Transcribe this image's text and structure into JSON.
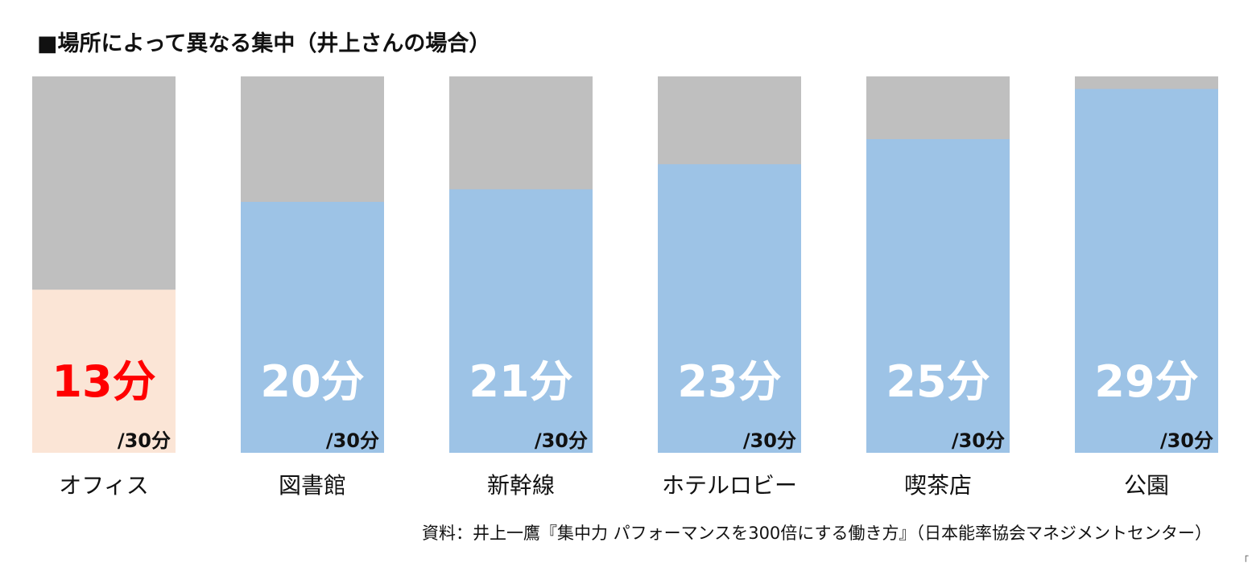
{
  "chart_data": {
    "type": "bar",
    "title": "■場所によって異なる集中（井上さんの場合）",
    "categories": [
      "オフィス",
      "図書館",
      "新幹線",
      "ホテルロビー",
      "喫茶店",
      "公園"
    ],
    "values": [
      13,
      20,
      21,
      23,
      25,
      29
    ],
    "value_labels": [
      "13分",
      "20分",
      "21分",
      "23分",
      "25分",
      "29分"
    ],
    "total": 30,
    "total_labels": [
      "/30分",
      "/30分",
      "/30分",
      "/30分",
      "/30分",
      "/30分"
    ],
    "ylim": [
      0,
      30
    ],
    "grid": false,
    "highlight_index": 0,
    "colors": {
      "remainder": "#bfbfbf",
      "bar": "#9dc3e6",
      "highlight_bar": "#fbe5d6",
      "highlight_text": "#ff0000",
      "value_text": "#ffffff"
    }
  },
  "source": "資料：井上一鷹『集中力 パフォーマンスを300倍にする働き方』（日本能率協会マネジメントセンター）",
  "corner_mark": "「"
}
